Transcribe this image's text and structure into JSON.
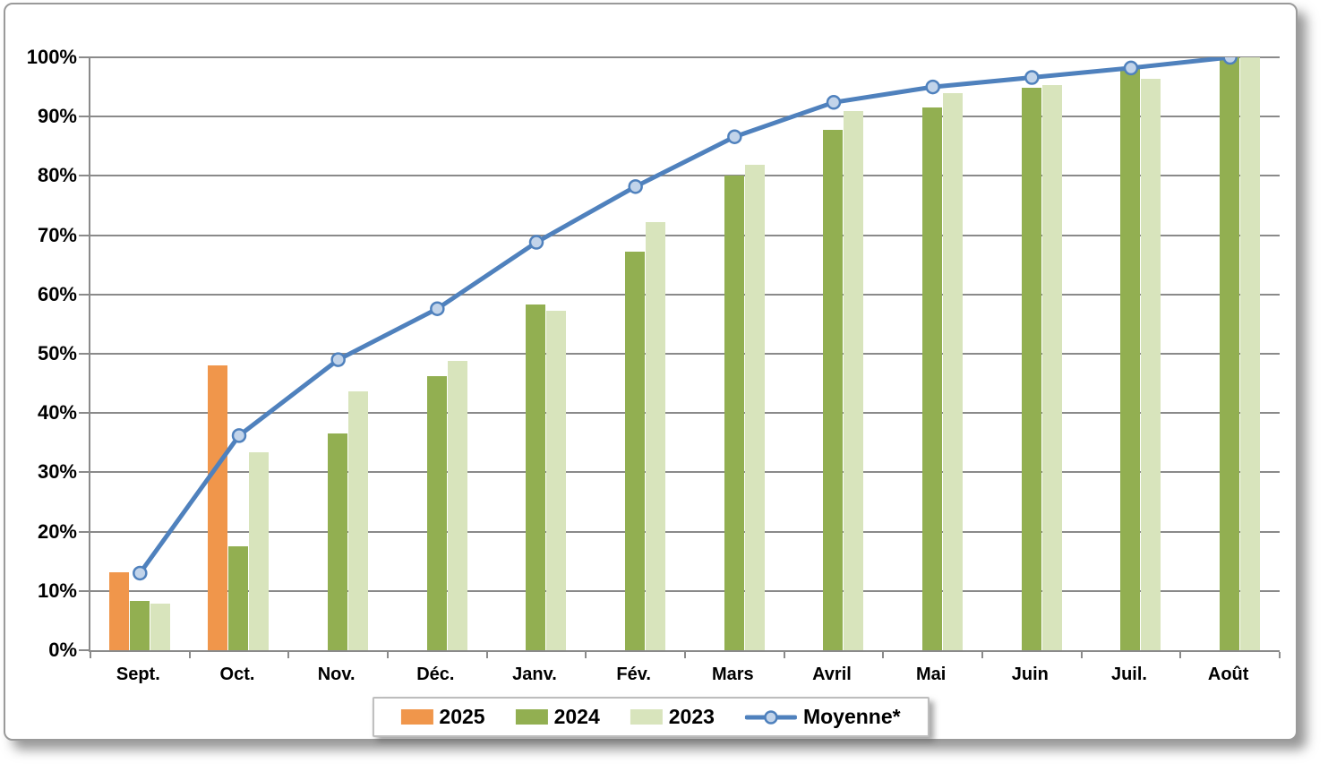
{
  "chart_data": {
    "type": "bar",
    "subtype": "grouped bars with overlaid line (combo)",
    "title": "",
    "xlabel": "",
    "ylabel": "",
    "categories": [
      "Sept.",
      "Oct.",
      "Nov.",
      "Déc.",
      "Janv.",
      "Fév.",
      "Mars",
      "Avril",
      "Mai",
      "Juin",
      "Juil.",
      "Août"
    ],
    "series": [
      {
        "name": "2025",
        "type": "bar",
        "color": "#F0964B",
        "values": [
          13.2,
          48.0,
          null,
          null,
          null,
          null,
          null,
          null,
          null,
          null,
          null,
          null
        ]
      },
      {
        "name": "2024",
        "type": "bar",
        "color": "#92AF51",
        "values": [
          8.3,
          17.5,
          36.6,
          46.2,
          58.3,
          67.2,
          80.0,
          87.8,
          91.6,
          94.8,
          98.4,
          100.0
        ]
      },
      {
        "name": "2023",
        "type": "bar",
        "color": "#D8E4BC",
        "values": [
          7.8,
          33.4,
          43.6,
          48.8,
          57.3,
          72.2,
          81.8,
          90.9,
          94.0,
          95.3,
          96.4,
          100.0
        ]
      },
      {
        "name": "Moyenne*",
        "type": "line",
        "color": "#4F81BD",
        "marker_fill": "#C2D4EA",
        "values": [
          13.0,
          36.2,
          49.0,
          57.6,
          68.8,
          78.2,
          86.6,
          92.4,
          95.0,
          96.6,
          98.2,
          100.0
        ]
      }
    ],
    "ylim": [
      0,
      100
    ],
    "ytick_step": 10,
    "ytick_labels": [
      "0%",
      "10%",
      "20%",
      "30%",
      "40%",
      "50%",
      "60%",
      "70%",
      "80%",
      "90%",
      "100%"
    ],
    "grid": "horizontal gridlines on, gray",
    "legend_position": "bottom center, boxed with drop shadow",
    "colors": {
      "gridline": "#8a8a8a",
      "axis": "#8a8a8a",
      "frame_border": "#9a9a9a",
      "text": "#000000",
      "background": "#ffffff"
    }
  }
}
